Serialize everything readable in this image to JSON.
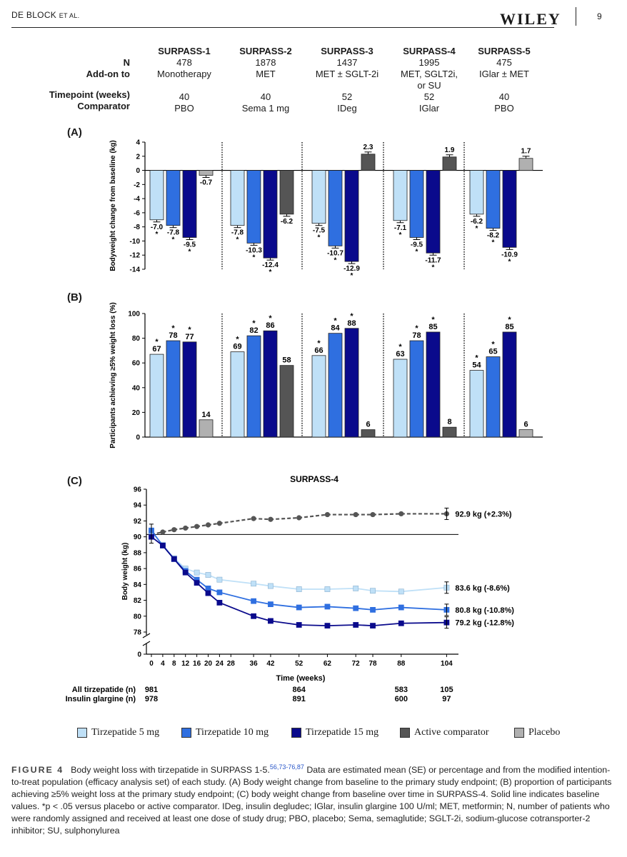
{
  "header": {
    "author_main": "DE BLOCK",
    "author_small": "ET AL.",
    "journal_logo": "WILEY",
    "page_number": "9"
  },
  "study_table": {
    "row_labels": [
      "N",
      "Add-on to",
      "Timepoint (weeks)",
      "Comparator"
    ],
    "studies": [
      {
        "name": "SURPASS-1",
        "n": "478",
        "addon": "Monotherapy",
        "addon2": "",
        "timepoint": "40",
        "comparator": "PBO"
      },
      {
        "name": "SURPASS-2",
        "n": "1878",
        "addon": "MET",
        "addon2": "",
        "timepoint": "40",
        "comparator": "Sema 1 mg"
      },
      {
        "name": "SURPASS-3",
        "n": "1437",
        "addon": "MET ± SGLT-2i",
        "addon2": "",
        "timepoint": "52",
        "comparator": "IDeg"
      },
      {
        "name": "SURPASS-4",
        "n": "1995",
        "addon": "MET, SGLT2i,",
        "addon2": "or SU",
        "timepoint": "52",
        "comparator": "IGlar"
      },
      {
        "name": "SURPASS-5",
        "n": "475",
        "addon": "IGlar ± MET",
        "addon2": "",
        "timepoint": "40",
        "comparator": "PBO"
      }
    ]
  },
  "colors": {
    "tirz5": "#bfe0f7",
    "tirz10": "#2f6fe0",
    "tirz15": "#0a0a8c",
    "active": "#555555",
    "placebo": "#b0b0b0"
  },
  "chart_data": [
    {
      "panel": "(A)",
      "type": "bar",
      "ylabel": "Bodyweight change from baseline (kg)",
      "ylim": [
        -14,
        4
      ],
      "yticks": [
        4,
        2,
        0,
        -2,
        -4,
        -6,
        -8,
        -10,
        -12,
        -14
      ],
      "groups": [
        {
          "bars": [
            {
              "series": "tirz5",
              "value": -7.0,
              "label": "-7.0",
              "star": true
            },
            {
              "series": "tirz10",
              "value": -7.8,
              "label": "-7.8",
              "star": true
            },
            {
              "series": "tirz15",
              "value": -9.5,
              "label": "-9.5",
              "star": true
            },
            {
              "series": "placebo",
              "value": -0.7,
              "label": "-0.7",
              "star": false
            }
          ]
        },
        {
          "bars": [
            {
              "series": "tirz5",
              "value": -7.8,
              "label": "-7.8",
              "star": true
            },
            {
              "series": "tirz10",
              "value": -10.3,
              "label": "-10.3",
              "star": true
            },
            {
              "series": "tirz15",
              "value": -12.4,
              "label": "-12.4",
              "star": true
            },
            {
              "series": "active",
              "value": -6.2,
              "label": "-6.2",
              "star": false
            }
          ]
        },
        {
          "bars": [
            {
              "series": "tirz5",
              "value": -7.5,
              "label": "-7.5",
              "star": true
            },
            {
              "series": "tirz10",
              "value": -10.7,
              "label": "-10.7",
              "star": true
            },
            {
              "series": "tirz15",
              "value": -12.9,
              "label": "-12.9",
              "star": true
            },
            {
              "series": "active",
              "value": 2.3,
              "label": "2.3",
              "star": false
            }
          ]
        },
        {
          "bars": [
            {
              "series": "tirz5",
              "value": -7.1,
              "label": "-7.1",
              "star": true
            },
            {
              "series": "tirz10",
              "value": -9.5,
              "label": "-9.5",
              "star": true
            },
            {
              "series": "tirz15",
              "value": -11.7,
              "label": "-11.7",
              "star": true
            },
            {
              "series": "active",
              "value": 1.9,
              "label": "1.9",
              "star": false
            }
          ]
        },
        {
          "bars": [
            {
              "series": "tirz5",
              "value": -6.2,
              "label": "-6.2",
              "star": true
            },
            {
              "series": "tirz10",
              "value": -8.2,
              "label": "-8.2",
              "star": true
            },
            {
              "series": "tirz15",
              "value": -10.9,
              "label": "-10.9",
              "star": true
            },
            {
              "series": "placebo",
              "value": 1.7,
              "label": "1.7",
              "star": false
            }
          ]
        }
      ]
    },
    {
      "panel": "(B)",
      "type": "bar",
      "ylabel": "Participants achieving ≥5% weight loss (%)",
      "ylim": [
        0,
        100
      ],
      "yticks": [
        100,
        80,
        60,
        40,
        20,
        0
      ],
      "groups": [
        {
          "bars": [
            {
              "series": "tirz5",
              "value": 67,
              "label": "67",
              "star": true
            },
            {
              "series": "tirz10",
              "value": 78,
              "label": "78",
              "star": true
            },
            {
              "series": "tirz15",
              "value": 77,
              "label": "77",
              "star": true
            },
            {
              "series": "placebo",
              "value": 14,
              "label": "14",
              "star": false
            }
          ]
        },
        {
          "bars": [
            {
              "series": "tirz5",
              "value": 69,
              "label": "69",
              "star": true
            },
            {
              "series": "tirz10",
              "value": 82,
              "label": "82",
              "star": true
            },
            {
              "series": "tirz15",
              "value": 86,
              "label": "86",
              "star": true
            },
            {
              "series": "active",
              "value": 58,
              "label": "58",
              "star": false
            }
          ]
        },
        {
          "bars": [
            {
              "series": "tirz5",
              "value": 66,
              "label": "66",
              "star": true
            },
            {
              "series": "tirz10",
              "value": 84,
              "label": "84",
              "star": true
            },
            {
              "series": "tirz15",
              "value": 88,
              "label": "88",
              "star": true
            },
            {
              "series": "active",
              "value": 6,
              "label": "6",
              "star": false
            }
          ]
        },
        {
          "bars": [
            {
              "series": "tirz5",
              "value": 63,
              "label": "63",
              "star": true
            },
            {
              "series": "tirz10",
              "value": 78,
              "label": "78",
              "star": true
            },
            {
              "series": "tirz15",
              "value": 85,
              "label": "85",
              "star": true
            },
            {
              "series": "active",
              "value": 8,
              "label": "8",
              "star": false
            }
          ]
        },
        {
          "bars": [
            {
              "series": "tirz5",
              "value": 54,
              "label": "54",
              "star": true
            },
            {
              "series": "tirz10",
              "value": 65,
              "label": "65",
              "star": true
            },
            {
              "series": "tirz15",
              "value": 85,
              "label": "85",
              "star": true
            },
            {
              "series": "placebo",
              "value": 6,
              "label": "6",
              "star": false
            }
          ]
        }
      ]
    },
    {
      "panel": "(C)",
      "type": "line",
      "title": "SURPASS-4",
      "xlabel": "Time (weeks)",
      "ylabel": "Body weight (kg)",
      "xticks": [
        0,
        4,
        8,
        12,
        16,
        20,
        24,
        28,
        36,
        42,
        52,
        62,
        72,
        78,
        88,
        104
      ],
      "yticks": [
        96,
        94,
        92,
        90,
        88,
        86,
        84,
        82,
        80,
        78
      ],
      "y_zero_label": "0",
      "ylim": [
        78,
        96
      ],
      "baseline": 90.3,
      "series": [
        {
          "key": "active",
          "dashed": true,
          "x": [
            0,
            4,
            8,
            12,
            16,
            20,
            24,
            36,
            42,
            52,
            62,
            72,
            78,
            88,
            104
          ],
          "y": [
            90.3,
            90.6,
            90.9,
            91.1,
            91.3,
            91.5,
            91.7,
            92.3,
            92.2,
            92.4,
            92.8,
            92.8,
            92.8,
            92.9,
            92.9
          ],
          "end_label": "92.9 kg (+2.3%)"
        },
        {
          "key": "tirz5",
          "dashed": false,
          "x": [
            0,
            4,
            8,
            12,
            16,
            20,
            24,
            36,
            42,
            52,
            62,
            72,
            78,
            88,
            104
          ],
          "y": [
            90.6,
            89.0,
            87.3,
            86.0,
            85.5,
            85.2,
            84.6,
            84.1,
            83.8,
            83.4,
            83.4,
            83.5,
            83.2,
            83.1,
            83.6
          ],
          "end_label": "83.6 kg (-8.6%)"
        },
        {
          "key": "tirz10",
          "dashed": false,
          "x": [
            0,
            4,
            8,
            12,
            16,
            20,
            24,
            36,
            42,
            52,
            62,
            72,
            78,
            88,
            104
          ],
          "y": [
            90.8,
            88.9,
            87.2,
            85.7,
            84.6,
            83.5,
            83.0,
            81.9,
            81.5,
            81.1,
            81.2,
            81.0,
            80.8,
            81.1,
            80.8
          ],
          "end_label": "80.8 kg (-10.8%)"
        },
        {
          "key": "tirz15",
          "dashed": false,
          "x": [
            0,
            4,
            8,
            12,
            16,
            20,
            24,
            36,
            42,
            52,
            62,
            72,
            78,
            88,
            104
          ],
          "y": [
            90.0,
            88.9,
            87.2,
            85.5,
            84.2,
            82.9,
            81.7,
            80.0,
            79.4,
            78.9,
            78.8,
            78.9,
            78.8,
            79.1,
            79.2
          ],
          "end_label": "79.2 kg (-12.8%)"
        }
      ],
      "n_table": [
        {
          "label": "All tirzepatide (n)",
          "values": [
            {
              "x": 0,
              "v": "981"
            },
            {
              "x": 52,
              "v": "864"
            },
            {
              "x": 88,
              "v": "583"
            },
            {
              "x": 104,
              "v": "105"
            }
          ]
        },
        {
          "label": "Insulin glargine  (n)",
          "values": [
            {
              "x": 0,
              "v": "978"
            },
            {
              "x": 52,
              "v": "891"
            },
            {
              "x": 88,
              "v": "600"
            },
            {
              "x": 104,
              "v": "97"
            }
          ]
        }
      ]
    }
  ],
  "legend": [
    {
      "key": "tirz5",
      "label": "Tirzepatide 5 mg"
    },
    {
      "key": "tirz10",
      "label": "Tirzepatide 10 mg"
    },
    {
      "key": "tirz15",
      "label": "Tirzepatide 15 mg"
    },
    {
      "key": "active",
      "label": "Active comparator"
    },
    {
      "key": "placebo",
      "label": "Placebo"
    }
  ],
  "caption": {
    "figure_label": "FIGURE 4",
    "lead": "Body weight loss with tirzepatide in SURPASS 1-5.",
    "refs": "56,73-76,87",
    "body": " Data are estimated mean (SE) or percentage and from the modified intention-to-treat population (efficacy analysis set) of each study. (A) Body weight change from baseline to the primary study endpoint; (B) proportion of participants achieving ≥5% weight loss at the primary study endpoint; (C) body weight change from baseline over time in SURPASS-4. Solid line indicates baseline values. *p < .05 versus placebo or active comparator. IDeg, insulin degludec; IGlar, insulin glargine 100 U/ml; MET, metformin; N, number of patients who were randomly assigned and received at least one dose of study drug; PBO, placebo; Sema, semaglutide; SGLT-2i, sodium-glucose cotransporter-2 inhibitor; SU, sulphonylurea"
  }
}
